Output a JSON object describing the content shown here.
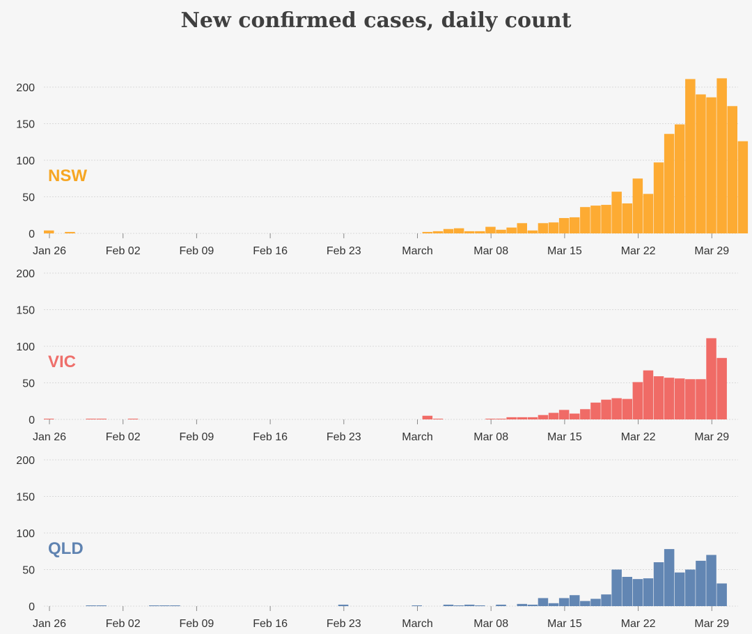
{
  "chart_title": "New confirmed cases, daily count",
  "chart_data": [
    {
      "type": "bar",
      "name": "NSW",
      "color": "#fdab33",
      "label_color": "#f6a623",
      "ylim": [
        0,
        220
      ],
      "yticks": [
        0,
        50,
        100,
        150,
        200
      ],
      "x_tick_labels": [
        "Jan 26",
        "Feb 02",
        "Feb 09",
        "Feb 16",
        "Feb 23",
        "March",
        "Mar 08",
        "Mar 15",
        "Mar 22",
        "Mar 29"
      ],
      "x_start": "Jan 26",
      "values": [
        4,
        0,
        2,
        0,
        0,
        0,
        0,
        0,
        0,
        0,
        0,
        0,
        0,
        0,
        0,
        0,
        0,
        0,
        0,
        0,
        0,
        0,
        0,
        0,
        0,
        0,
        0,
        0,
        0,
        0,
        0,
        0,
        0,
        0,
        0,
        0,
        2,
        3,
        6,
        7,
        3,
        3,
        9,
        5,
        8,
        14,
        4,
        14,
        15,
        21,
        22,
        36,
        38,
        39,
        57,
        41,
        75,
        54,
        97,
        136,
        149,
        211,
        190,
        186,
        212,
        174,
        126
      ]
    },
    {
      "type": "bar",
      "name": "VIC",
      "color": "#f06b66",
      "label_color": "#ee6f6b",
      "ylim": [
        0,
        220
      ],
      "yticks": [
        0,
        50,
        100,
        150,
        200
      ],
      "x_tick_labels": [
        "Jan 26",
        "Feb 02",
        "Feb 09",
        "Feb 16",
        "Feb 23",
        "March",
        "Mar 08",
        "Mar 15",
        "Mar 22",
        "Mar 29"
      ],
      "x_start": "Jan 26",
      "values": [
        1,
        0,
        0,
        0,
        1,
        1,
        0,
        0,
        1,
        0,
        0,
        0,
        0,
        0,
        0,
        0,
        0,
        0,
        0,
        0,
        0,
        0,
        0,
        0,
        0,
        0,
        0,
        0,
        0,
        0,
        0,
        0,
        0,
        0,
        0,
        0,
        5,
        1,
        0,
        0,
        0,
        0,
        1,
        1,
        3,
        3,
        3,
        6,
        9,
        13,
        8,
        14,
        23,
        27,
        29,
        28,
        51,
        67,
        59,
        57,
        56,
        55,
        55,
        111,
        84,
        0,
        0
      ]
    },
    {
      "type": "bar",
      "name": "QLD",
      "color": "#6286b3",
      "label_color": "#5f83b1",
      "ylim": [
        0,
        220
      ],
      "yticks": [
        0,
        50,
        100,
        150,
        200
      ],
      "x_tick_labels": [
        "Jan 26",
        "Feb 02",
        "Feb 09",
        "Feb 16",
        "Feb 23",
        "March",
        "Mar 08",
        "Mar 15",
        "Mar 22",
        "Mar 29"
      ],
      "x_start": "Jan 26",
      "values": [
        0,
        0,
        0,
        0,
        1,
        1,
        0,
        0,
        0,
        0,
        1,
        1,
        1,
        0,
        0,
        0,
        0,
        0,
        0,
        0,
        0,
        0,
        0,
        0,
        0,
        0,
        0,
        0,
        2,
        0,
        0,
        0,
        0,
        0,
        0,
        1,
        0,
        0,
        2,
        1,
        2,
        1,
        0,
        2,
        0,
        3,
        2,
        11,
        4,
        11,
        15,
        7,
        10,
        16,
        50,
        40,
        37,
        38,
        60,
        78,
        46,
        50,
        62,
        70,
        31,
        0,
        0
      ]
    }
  ]
}
